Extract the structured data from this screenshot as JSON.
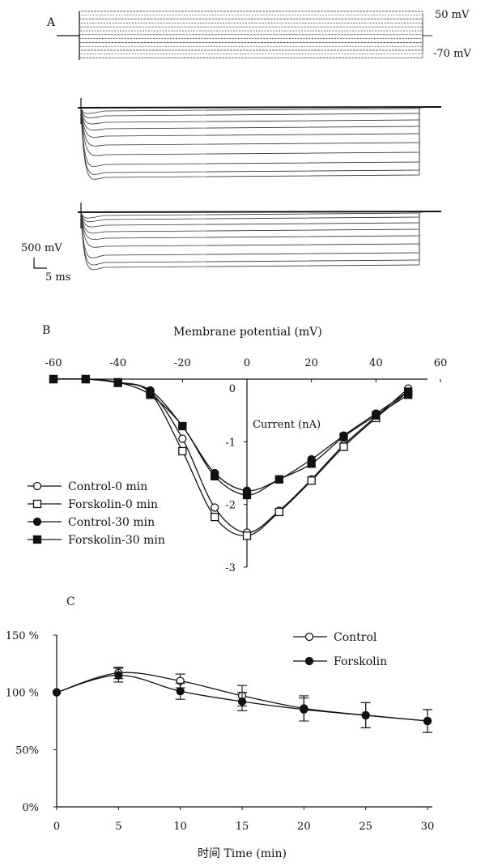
{
  "panel_a": {
    "label": "A",
    "voltage_high_label": "50 mV",
    "voltage_low_label": "-70 mV",
    "scale_voltage_label": "500 mV",
    "scale_time_label": "5 ms",
    "trace_color": "#333333"
  },
  "chart_data": [
    {
      "panel": "B",
      "type": "line",
      "xlabel": "Membrane potential (mV)",
      "ylabel": "Current (nA)",
      "xlim": [
        -60,
        60
      ],
      "ylim": [
        -3,
        0
      ],
      "xticks": [
        -60,
        -40,
        -20,
        0,
        20,
        40,
        60
      ],
      "yticks": [
        0,
        -1,
        -2,
        -3
      ],
      "x": [
        -60,
        -50,
        -40,
        -30,
        -20,
        -10,
        0,
        10,
        20,
        30,
        40,
        50
      ],
      "series": [
        {
          "name": "Control-0 min",
          "marker": "open-circle",
          "values": [
            0,
            0,
            -0.05,
            -0.2,
            -0.95,
            -2.05,
            -2.45,
            -2.1,
            -1.6,
            -1.05,
            -0.6,
            -0.15
          ]
        },
        {
          "name": "Forskolin-0 min",
          "marker": "open-square",
          "values": [
            0,
            0,
            -0.06,
            -0.22,
            -1.15,
            -2.2,
            -2.5,
            -2.12,
            -1.62,
            -1.08,
            -0.62,
            -0.2
          ]
        },
        {
          "name": "Control-30 min",
          "marker": "filled-circle",
          "values": [
            0,
            0,
            -0.05,
            -0.18,
            -0.75,
            -1.5,
            -1.78,
            -1.6,
            -1.28,
            -0.9,
            -0.55,
            -0.2
          ]
        },
        {
          "name": "Forskolin-30 min",
          "marker": "filled-square",
          "values": [
            0,
            0,
            -0.05,
            -0.25,
            -0.75,
            -1.55,
            -1.85,
            -1.6,
            -1.35,
            -0.92,
            -0.58,
            -0.25
          ]
        }
      ],
      "legend": "bottom-left"
    },
    {
      "panel": "C",
      "type": "line",
      "xlabel": "时间 Time (min)",
      "ylabel": "",
      "xlim": [
        0,
        30
      ],
      "ylim": [
        0,
        150
      ],
      "xticks": [
        0,
        5,
        10,
        15,
        20,
        25,
        30
      ],
      "ytick_labels": [
        "0%",
        "50%",
        "100 %",
        "150 %"
      ],
      "yticks": [
        0,
        50,
        100,
        150
      ],
      "x": [
        0,
        5,
        10,
        15,
        20,
        25,
        30
      ],
      "series": [
        {
          "name": "Control",
          "marker": "open-circle",
          "values": [
            100,
            117,
            110,
            97,
            86,
            80,
            75
          ],
          "errors": [
            0,
            5,
            6,
            9,
            11,
            11,
            10
          ]
        },
        {
          "name": "Forskolin",
          "marker": "filled-circle",
          "values": [
            100,
            115,
            101,
            92,
            85,
            80,
            75
          ],
          "errors": [
            0,
            6,
            7,
            8,
            10,
            11,
            10
          ]
        }
      ],
      "legend": "top-right"
    }
  ]
}
